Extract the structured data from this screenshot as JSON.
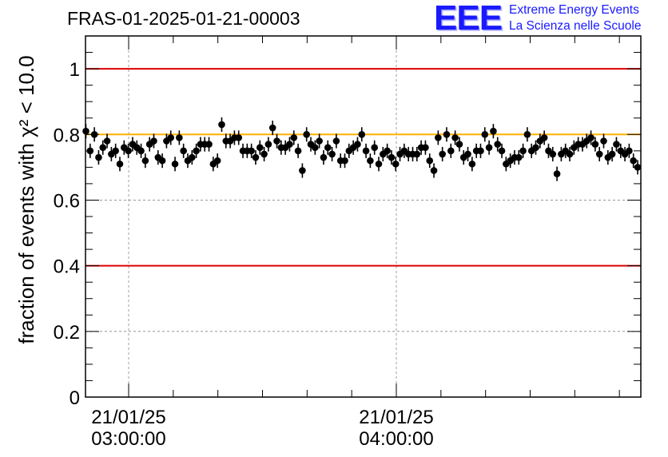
{
  "title": "FRAS-01-2025-01-21-00003",
  "logo": {
    "mark": "EEE",
    "line1": "Extreme Energy Events",
    "line2": "La Scienza nelle Scuole",
    "color": "#1a1aff"
  },
  "chart_data": {
    "type": "scatter",
    "title": "FRAS-01-2025-01-21-00003",
    "ylabel": "fraction of events with χ² < 10.0",
    "xlabel": "",
    "x_time_range": [
      "21/01/25 02:50:30",
      "21/01/25 04:55:20"
    ],
    "ylim": [
      0,
      1.1
    ],
    "yticks": [
      0,
      0.2,
      0.4,
      0.6,
      0.8,
      1
    ],
    "ytick_labels": [
      "0",
      "0.2",
      "0.4",
      "0.6",
      "0.8",
      "1"
    ],
    "xtick_labels": [
      {
        "date": "21/01/25",
        "time": "03:00:00"
      },
      {
        "date": "21/01/25",
        "time": "04:00:00"
      }
    ],
    "grid": true,
    "reference_lines": [
      {
        "y": 1.0,
        "color": "#e00000"
      },
      {
        "y": 0.8,
        "color": "#ffb000"
      },
      {
        "y": 0.4,
        "color": "#e00000"
      }
    ],
    "marker_color": "#000000",
    "error_bar": 0.022,
    "series": [
      {
        "values": [
          0.81,
          0.75,
          0.8,
          0.73,
          0.76,
          0.78,
          0.74,
          0.75,
          0.71,
          0.76,
          0.75,
          0.77,
          0.76,
          0.75,
          0.72,
          0.77,
          0.78,
          0.73,
          0.72,
          0.78,
          0.79,
          0.71,
          0.79,
          0.75,
          0.72,
          0.73,
          0.75,
          0.77,
          0.77,
          0.77,
          0.71,
          0.72,
          0.83,
          0.78,
          0.78,
          0.79,
          0.79,
          0.75,
          0.75,
          0.75,
          0.73,
          0.76,
          0.74,
          0.77,
          0.82,
          0.78,
          0.76,
          0.76,
          0.77,
          0.79,
          0.75,
          0.69,
          0.8,
          0.77,
          0.76,
          0.78,
          0.73,
          0.76,
          0.74,
          0.78,
          0.72,
          0.72,
          0.75,
          0.76,
          0.77,
          0.8,
          0.75,
          0.72,
          0.76,
          0.71,
          0.74,
          0.75,
          0.73,
          0.71,
          0.74,
          0.75,
          0.74,
          0.74,
          0.74,
          0.76,
          0.76,
          0.72,
          0.69,
          0.79,
          0.74,
          0.8,
          0.75,
          0.79,
          0.77,
          0.73,
          0.74,
          0.71,
          0.75,
          0.75,
          0.8,
          0.76,
          0.81,
          0.77,
          0.75,
          0.71,
          0.72,
          0.73,
          0.73,
          0.75,
          0.8,
          0.75,
          0.76,
          0.78,
          0.79,
          0.75,
          0.74,
          0.68,
          0.74,
          0.75,
          0.74,
          0.76,
          0.77,
          0.77,
          0.78,
          0.79,
          0.77,
          0.74,
          0.78,
          0.73,
          0.74,
          0.77,
          0.75,
          0.74,
          0.75,
          0.72,
          0.7
        ]
      }
    ]
  }
}
